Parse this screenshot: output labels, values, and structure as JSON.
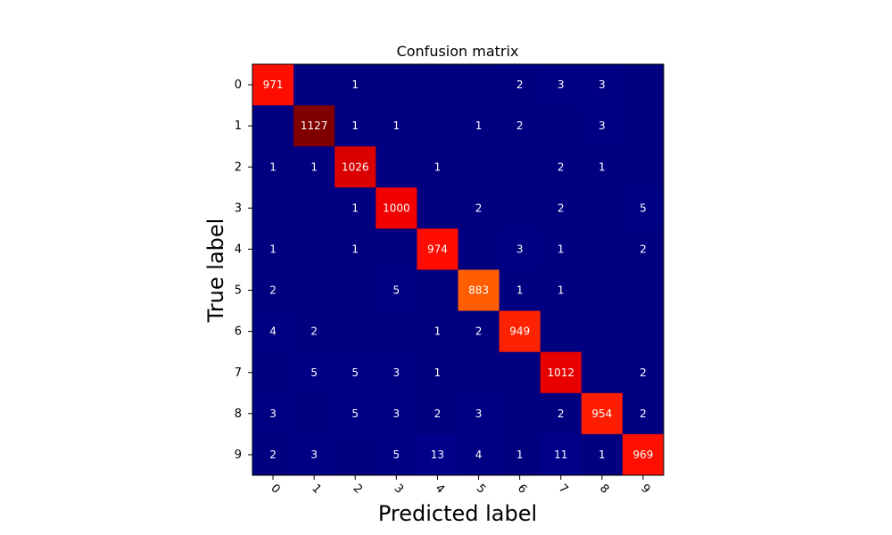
{
  "chart_data": {
    "type": "heatmap",
    "title": "Confusion matrix",
    "xlabel": "Predicted label",
    "ylabel": "True label",
    "x_ticks": [
      "0",
      "1",
      "2",
      "3",
      "4",
      "5",
      "6",
      "7",
      "8",
      "9"
    ],
    "y_ticks": [
      "0",
      "1",
      "2",
      "3",
      "4",
      "5",
      "6",
      "7",
      "8",
      "9"
    ],
    "colormap": "jet",
    "matrix": [
      [
        971,
        0,
        1,
        0,
        0,
        0,
        2,
        3,
        3,
        0
      ],
      [
        0,
        1127,
        1,
        1,
        0,
        1,
        2,
        0,
        3,
        0
      ],
      [
        1,
        1,
        1026,
        0,
        1,
        0,
        0,
        2,
        1,
        0
      ],
      [
        0,
        0,
        1,
        1000,
        0,
        2,
        0,
        2,
        0,
        5
      ],
      [
        1,
        0,
        1,
        0,
        974,
        0,
        3,
        1,
        0,
        2
      ],
      [
        2,
        0,
        0,
        5,
        0,
        883,
        1,
        1,
        0,
        0
      ],
      [
        4,
        2,
        0,
        0,
        1,
        2,
        949,
        0,
        0,
        0
      ],
      [
        0,
        5,
        5,
        3,
        1,
        0,
        0,
        1012,
        0,
        2
      ],
      [
        3,
        0,
        5,
        3,
        2,
        3,
        0,
        2,
        954,
        2
      ],
      [
        2,
        3,
        0,
        5,
        13,
        4,
        1,
        11,
        1,
        969
      ]
    ]
  }
}
